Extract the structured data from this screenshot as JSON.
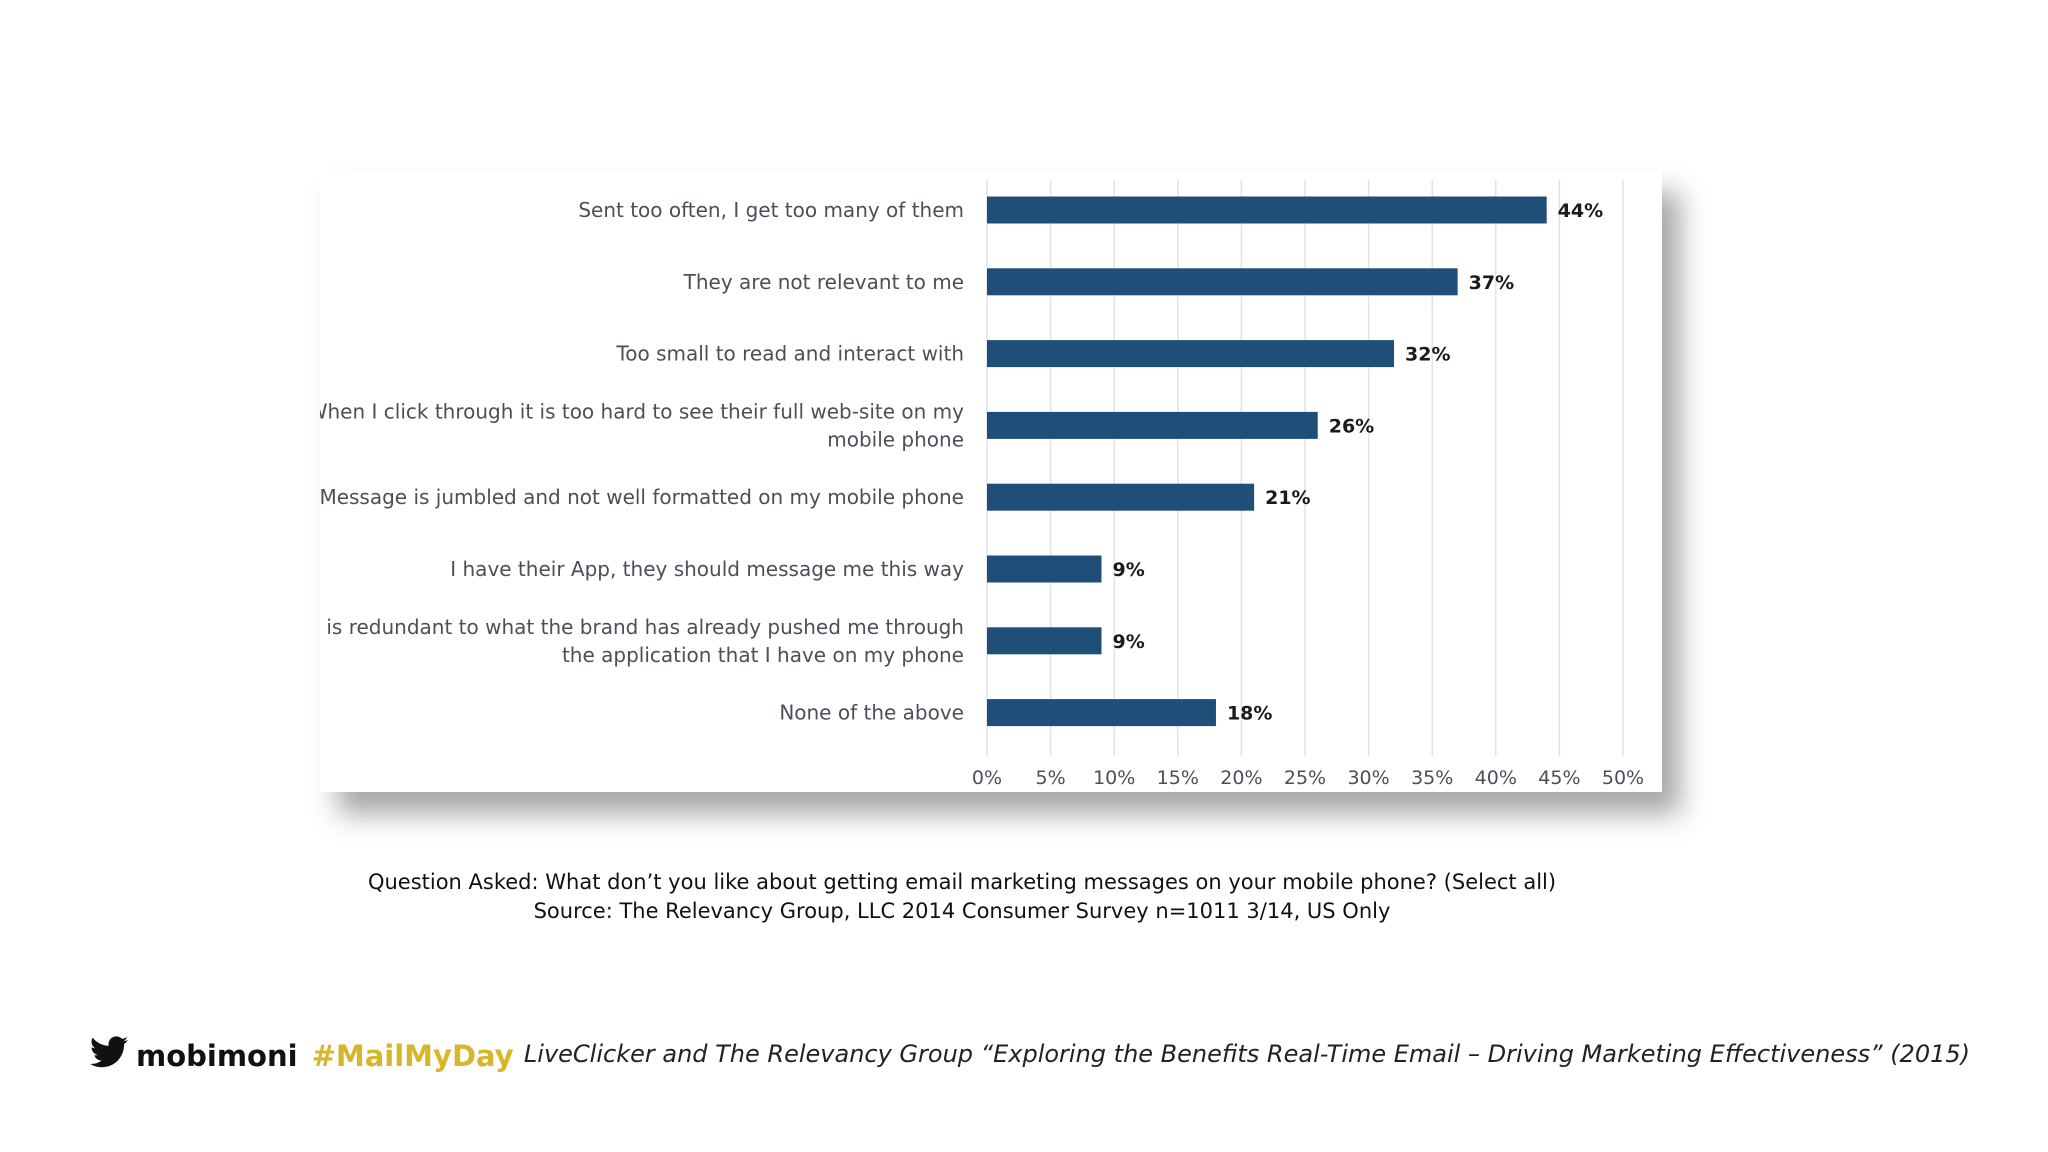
{
  "chart_data": {
    "type": "bar",
    "orientation": "horizontal",
    "categories": [
      [
        "Sent too often, I get too many of them"
      ],
      [
        "They are not relevant to me"
      ],
      [
        "Too small to read and interact with"
      ],
      [
        "When I click through it is too hard to see their full web-site on my",
        "mobile phone"
      ],
      [
        "Message is jumbled and not well formatted on my mobile phone"
      ],
      [
        "I have their App, they should message me this way"
      ],
      [
        "It is redundant to what the brand has already pushed me through",
        "the application that I have on my phone"
      ],
      [
        "None of the above"
      ]
    ],
    "values": [
      44,
      37,
      32,
      26,
      21,
      9,
      9,
      18
    ],
    "value_labels": [
      "44%",
      "37%",
      "32%",
      "26%",
      "21%",
      "9%",
      "9%",
      "18%"
    ],
    "xlim": [
      0,
      50
    ],
    "x_ticks": [
      "0%",
      "5%",
      "10%",
      "15%",
      "20%",
      "25%",
      "30%",
      "35%",
      "40%",
      "45%",
      "50%"
    ],
    "grid": "vertical",
    "colors": {
      "bar": "#1f4e79",
      "grid": "#e3e3e3"
    }
  },
  "caption": {
    "question": "Question Asked: What don’t you like about getting email marketing messages on your mobile phone? (Select all)",
    "source": "Source: The Relevancy Group, LLC 2014 Consumer Survey n=1011 3/14, US Only"
  },
  "footer": {
    "brand": "mobimoni",
    "hashtag": "#MailMyDay",
    "citation": "LiveClicker and The Relevancy Group “Exploring the Benefits Real-Time Email – Driving Marketing Effectiveness” (2015)",
    "icons": [
      "twitter-bird-icon"
    ],
    "colors": {
      "hashtag": "#d8b62a"
    }
  }
}
